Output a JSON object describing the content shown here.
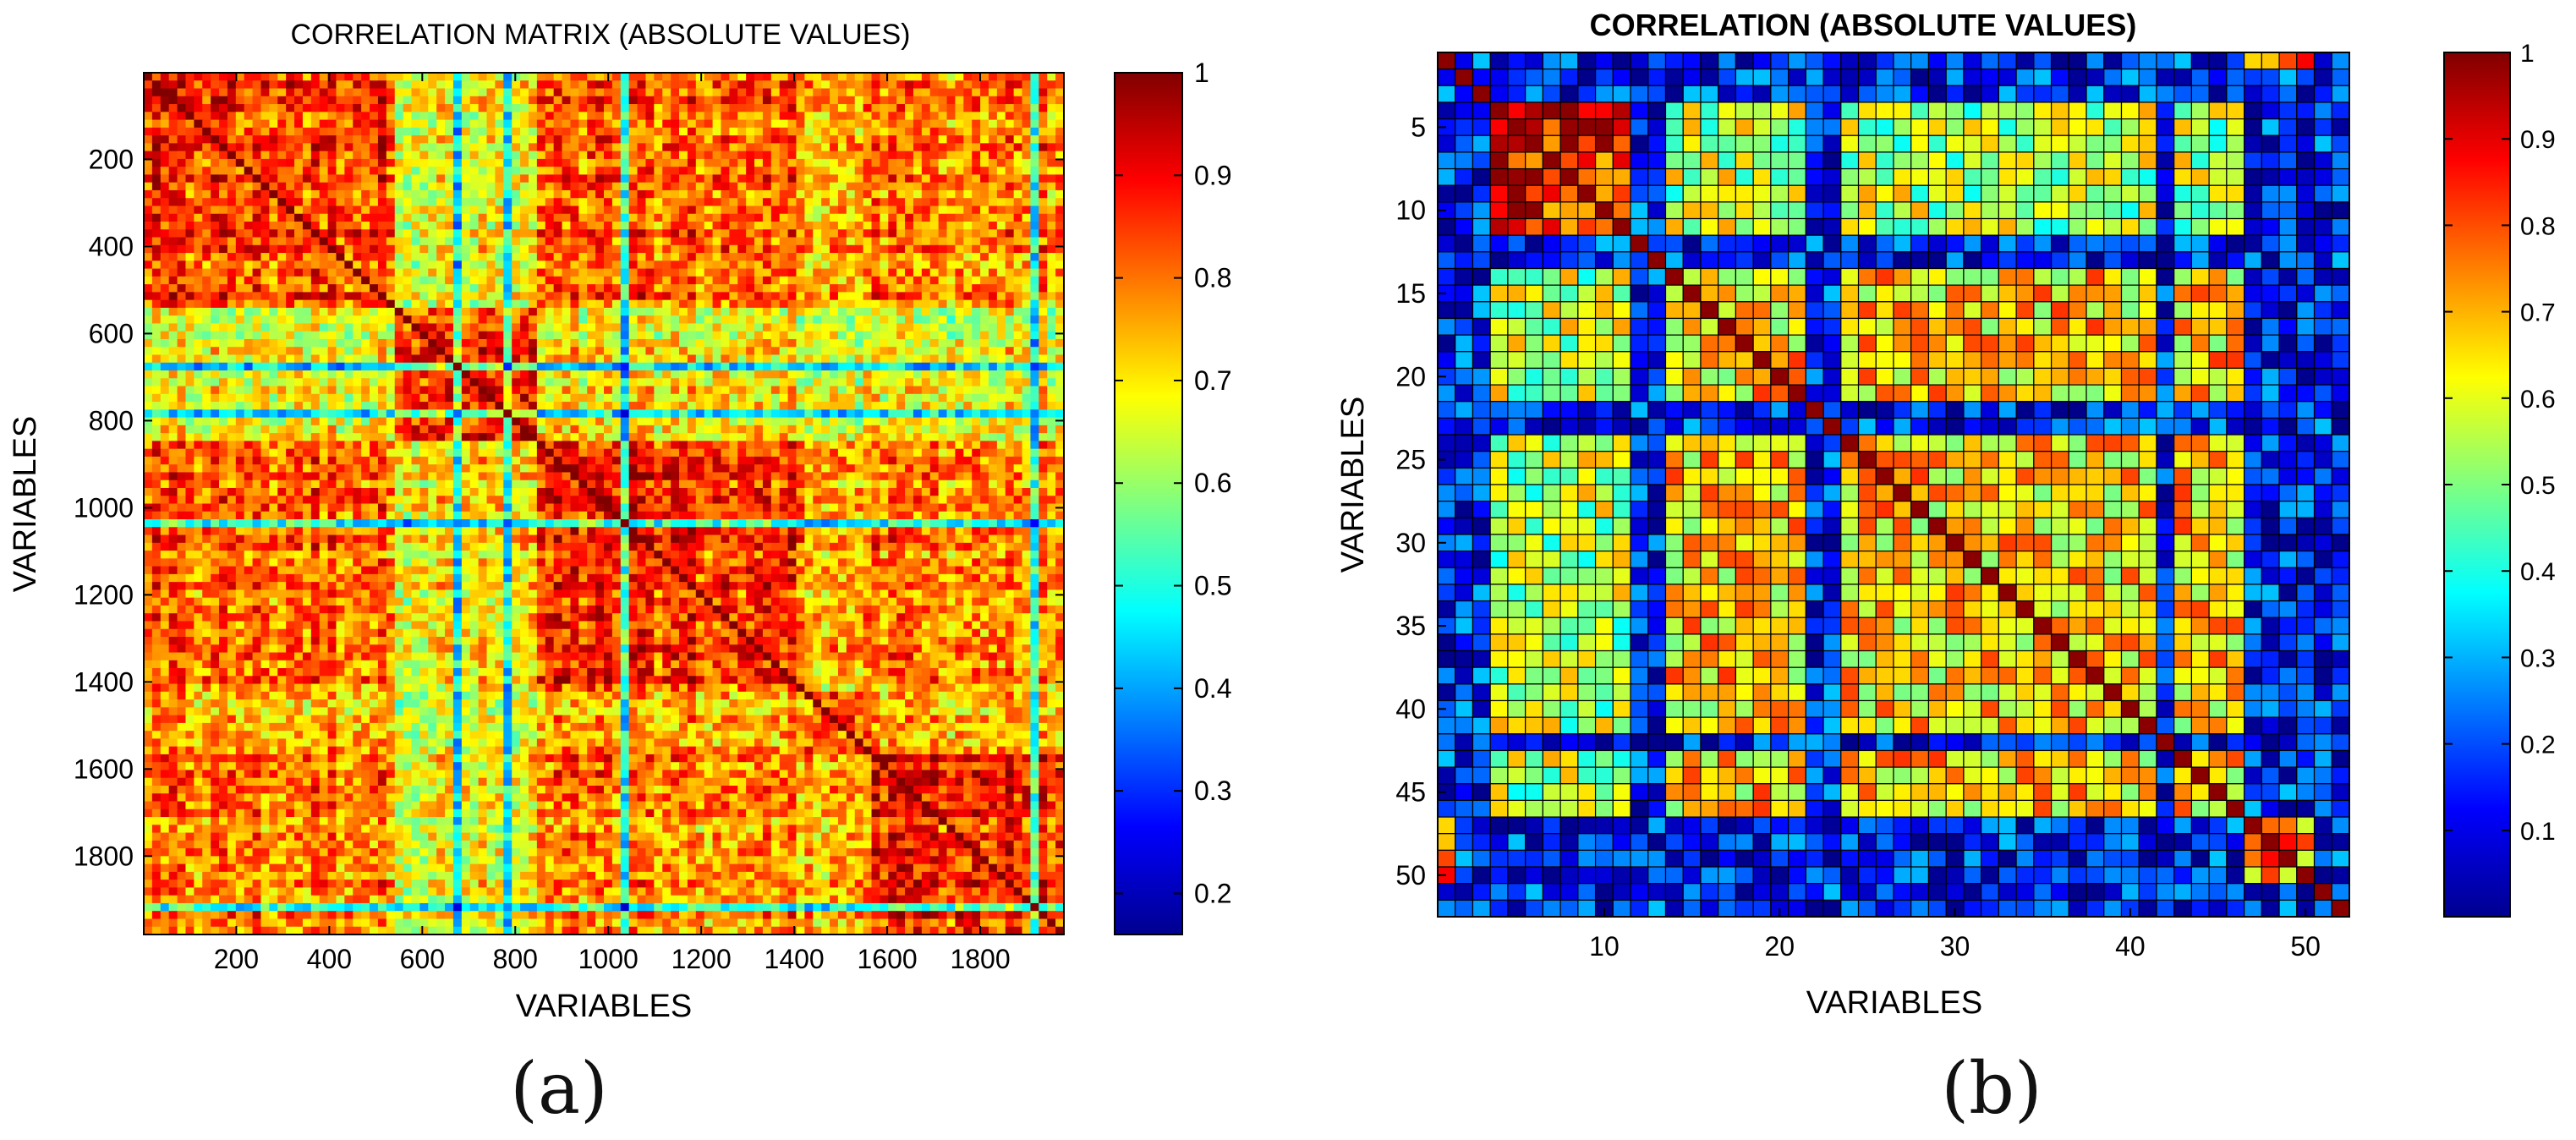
{
  "figure": {
    "caption_a": "(a)",
    "caption_b": "(b)"
  },
  "chart_data": [
    {
      "type": "heatmap",
      "title": "CORRELATION MATRIX (ABSOLUTE VALUES)",
      "xlabel": "VARIABLES",
      "ylabel": "VARIABLES",
      "n_variables": 1980,
      "xlim": [
        1,
        1980
      ],
      "ylim": [
        1,
        1980
      ],
      "x_ticks": [
        200,
        400,
        600,
        800,
        1000,
        1200,
        1400,
        1600,
        1800
      ],
      "y_ticks": [
        200,
        400,
        600,
        800,
        1000,
        1200,
        1400,
        1600,
        1800
      ],
      "color_range": [
        0.16,
        1
      ],
      "colorbar_ticks": [
        0.2,
        0.3,
        0.4,
        0.5,
        0.6,
        0.7,
        0.8,
        0.9,
        1
      ],
      "colorbar_tick_labels": [
        "0.2",
        "0.3",
        "0.4",
        "0.5",
        "0.6",
        "0.7",
        "0.8",
        "0.9",
        "1"
      ],
      "colormap": "jet",
      "block_boundaries": [
        1,
        540,
        850,
        1420,
        1560,
        1980
      ],
      "block_mean_correlation": [
        [
          0.9,
          0.72,
          0.86,
          0.8,
          0.84
        ],
        [
          0.72,
          0.92,
          0.74,
          0.7,
          0.72
        ],
        [
          0.86,
          0.74,
          0.9,
          0.8,
          0.83
        ],
        [
          0.8,
          0.7,
          0.8,
          0.88,
          0.8
        ],
        [
          0.84,
          0.72,
          0.83,
          0.8,
          0.93
        ]
      ]
    },
    {
      "type": "heatmap",
      "title": "CORRELATION (ABSOLUTE VALUES)",
      "xlabel": "VARIABLES",
      "ylabel": "VARIABLES",
      "n_variables": 52,
      "xlim": [
        1,
        52
      ],
      "ylim": [
        1,
        52
      ],
      "x_ticks": [
        10,
        20,
        30,
        40,
        50
      ],
      "y_ticks": [
        5,
        10,
        15,
        20,
        25,
        30,
        35,
        40,
        45,
        50
      ],
      "color_range": [
        0,
        1
      ],
      "colorbar_ticks": [
        0.1,
        0.2,
        0.3,
        0.4,
        0.5,
        0.6,
        0.7,
        0.8,
        0.9,
        1
      ],
      "colorbar_tick_labels": [
        "0.1",
        "0.2",
        "0.3",
        "0.4",
        "0.5",
        "0.6",
        "0.7",
        "0.8",
        "0.9",
        "1"
      ],
      "colormap": "jet",
      "group_members": {
        "A": [
          4,
          5,
          6,
          7,
          8,
          9,
          10,
          11
        ],
        "B": [
          14,
          15,
          16,
          17,
          18,
          19,
          20,
          21,
          24,
          25,
          26,
          27,
          28,
          29,
          30,
          31,
          32,
          33,
          34,
          35,
          36,
          37,
          38,
          39,
          40,
          41,
          43,
          44,
          45,
          46
        ],
        "C": [
          1,
          47,
          48,
          49,
          50
        ]
      },
      "group_mean_correlation": {
        "A-A": 0.85,
        "B-B": 0.66,
        "A-B": 0.55,
        "C-C": 0.72,
        "other": 0.15
      }
    }
  ]
}
